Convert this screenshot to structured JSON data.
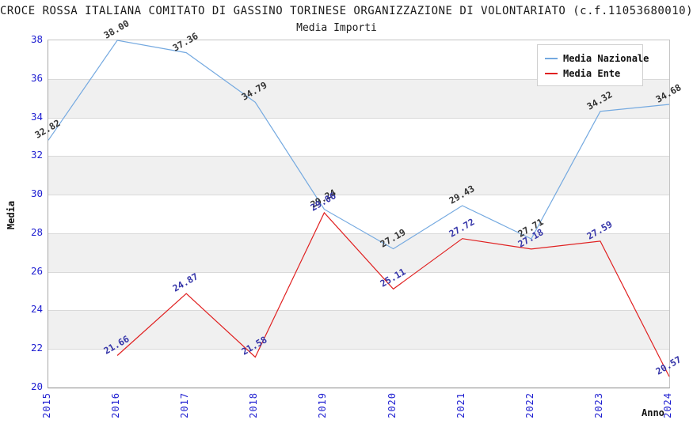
{
  "title": "CROCE ROSSA ITALIANA COMITATO DI GASSINO TORINESE ORGANIZZAZIONE DI VOLONTARIATO (c.f.11053680010)",
  "subtitle": "Media Importi",
  "axes": {
    "y_label": "Media",
    "x_label": "Anno",
    "y_ticks": [
      38,
      36,
      34,
      32,
      30,
      28,
      26,
      24,
      22,
      20
    ],
    "x_ticks": [
      "2015",
      "2016",
      "2017",
      "2018",
      "2019",
      "2020",
      "2021",
      "2022",
      "2023",
      "2024"
    ]
  },
  "legend": {
    "items": [
      {
        "label": "Media Nazionale"
      },
      {
        "label": "Media Ente"
      }
    ]
  },
  "colors": {
    "nazionale_line": "#74a9e0",
    "ente_line": "#e02020",
    "tick_label": "#1f1fd1",
    "nazionale_value_label": "#333333",
    "ente_value_label": "#3434a8",
    "band_white": "#ffffff",
    "band_gray": "#f0f0f0",
    "gridline": "#d9d9d9"
  },
  "chart_data": {
    "type": "line",
    "title": "CROCE ROSSA ITALIANA COMITATO DI GASSINO TORINESE ORGANIZZAZIONE DI VOLONTARIATO (c.f.11053680010)",
    "subtitle": "Media Importi",
    "xlabel": "Anno",
    "ylabel": "Media",
    "x": [
      2015,
      2016,
      2017,
      2018,
      2019,
      2020,
      2021,
      2022,
      2023,
      2024
    ],
    "series": [
      {
        "name": "Media Nazionale",
        "color": "#74a9e0",
        "label_color": "#333333",
        "values": [
          32.82,
          38.0,
          37.36,
          34.79,
          29.24,
          27.19,
          29.43,
          27.71,
          34.32,
          34.68
        ]
      },
      {
        "name": "Media Ente",
        "color": "#e02020",
        "label_color": "#3434a8",
        "values": [
          null,
          21.66,
          24.87,
          21.58,
          29.06,
          25.11,
          27.72,
          27.18,
          27.59,
          20.57
        ]
      }
    ],
    "ylim": [
      20,
      38
    ],
    "ytick_step": 2,
    "grid": "horizontal gridlines with alternating white/gray bands",
    "legend_position": "top-right",
    "value_labels": "each point labeled, rotated 30deg"
  }
}
